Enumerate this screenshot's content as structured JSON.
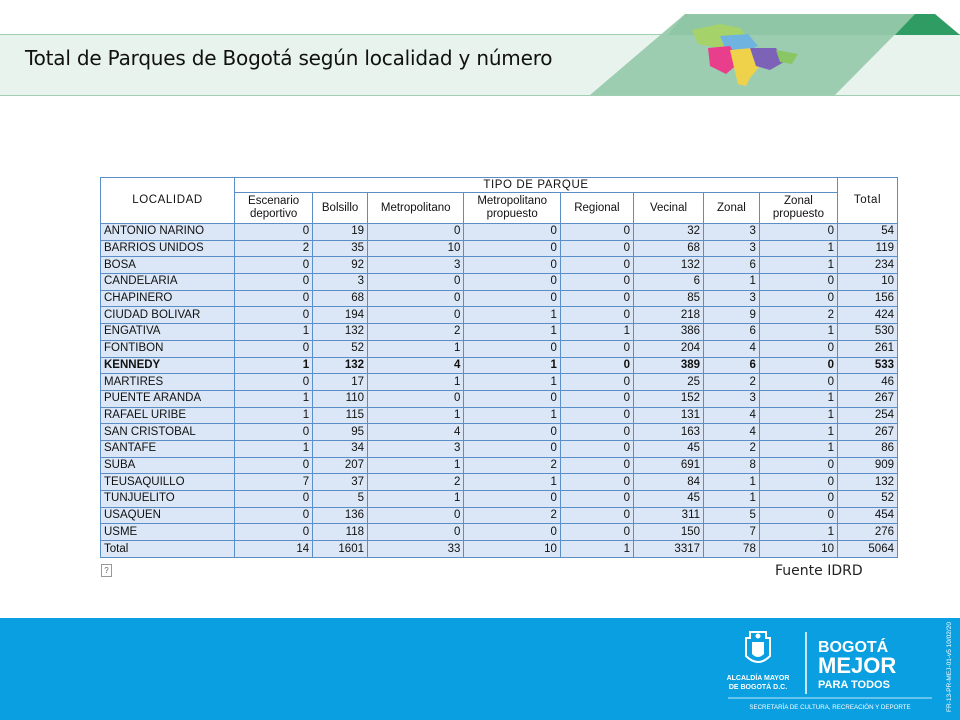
{
  "title": "Total de Parques de Bogotá según localidad y número",
  "source": "Fuente IDRD",
  "placeholder_glyph": "?",
  "table": {
    "localidad_header": "LOCALIDAD",
    "group_header": "TIPO DE PARQUE",
    "total_header": "Total",
    "columns": [
      "Escenario deportivo",
      "Bolsillo",
      "Metropolitano",
      "Metropolitano propuesto",
      "Regional",
      "Vecinal",
      "Zonal",
      "Zonal propuesto"
    ],
    "rows": [
      {
        "name": "ANTONIO NARINO",
        "values": [
          "0",
          "19",
          "0",
          "0",
          "0",
          "32",
          "3",
          "0"
        ],
        "total": "54"
      },
      {
        "name": "BARRIOS UNIDOS",
        "values": [
          "2",
          "35",
          "10",
          "0",
          "0",
          "68",
          "3",
          "1"
        ],
        "total": "119"
      },
      {
        "name": "BOSA",
        "values": [
          "0",
          "92",
          "3",
          "0",
          "0",
          "132",
          "6",
          "1"
        ],
        "total": "234"
      },
      {
        "name": "CANDELARIA",
        "values": [
          "0",
          "3",
          "0",
          "0",
          "0",
          "6",
          "1",
          "0"
        ],
        "total": "10"
      },
      {
        "name": "CHAPINERO",
        "values": [
          "0",
          "68",
          "0",
          "0",
          "0",
          "85",
          "3",
          "0"
        ],
        "total": "156"
      },
      {
        "name": "CIUDAD BOLIVAR",
        "values": [
          "0",
          "194",
          "0",
          "1",
          "0",
          "218",
          "9",
          "2"
        ],
        "total": "424"
      },
      {
        "name": "ENGATIVA",
        "values": [
          "1",
          "132",
          "2",
          "1",
          "1",
          "386",
          "6",
          "1"
        ],
        "total": "530"
      },
      {
        "name": "FONTIBON",
        "values": [
          "0",
          "52",
          "1",
          "0",
          "0",
          "204",
          "4",
          "0"
        ],
        "total": "261"
      },
      {
        "name": "KENNEDY",
        "values": [
          "1",
          "132",
          "4",
          "1",
          "0",
          "389",
          "6",
          "0"
        ],
        "total": "533",
        "bold": true
      },
      {
        "name": "MARTIRES",
        "values": [
          "0",
          "17",
          "1",
          "1",
          "0",
          "25",
          "2",
          "0"
        ],
        "total": "46"
      },
      {
        "name": "PUENTE ARANDA",
        "values": [
          "1",
          "110",
          "0",
          "0",
          "0",
          "152",
          "3",
          "1"
        ],
        "total": "267"
      },
      {
        "name": "RAFAEL URIBE",
        "values": [
          "1",
          "115",
          "1",
          "1",
          "0",
          "131",
          "4",
          "1"
        ],
        "total": "254"
      },
      {
        "name": "SAN CRISTOBAL",
        "values": [
          "0",
          "95",
          "4",
          "0",
          "0",
          "163",
          "4",
          "1"
        ],
        "total": "267"
      },
      {
        "name": "SANTAFE",
        "values": [
          "1",
          "34",
          "3",
          "0",
          "0",
          "45",
          "2",
          "1"
        ],
        "total": "86"
      },
      {
        "name": "SUBA",
        "values": [
          "0",
          "207",
          "1",
          "2",
          "0",
          "691",
          "8",
          "0"
        ],
        "total": "909"
      },
      {
        "name": "TEUSAQUILLO",
        "values": [
          "7",
          "37",
          "2",
          "1",
          "0",
          "84",
          "1",
          "0"
        ],
        "total": "132"
      },
      {
        "name": "TUNJUELITO",
        "values": [
          "0",
          "5",
          "1",
          "0",
          "0",
          "45",
          "1",
          "0"
        ],
        "total": "52"
      },
      {
        "name": "USAQUEN",
        "values": [
          "0",
          "136",
          "0",
          "2",
          "0",
          "311",
          "5",
          "0"
        ],
        "total": "454"
      },
      {
        "name": "USME",
        "values": [
          "0",
          "118",
          "0",
          "0",
          "0",
          "150",
          "7",
          "1"
        ],
        "total": "276"
      }
    ],
    "total_row": {
      "name": "Total",
      "values": [
        "14",
        "1601",
        "33",
        "10",
        "1",
        "3317",
        "78",
        "10"
      ],
      "total": "5064"
    }
  },
  "footer": {
    "alcaldia": "ALCALDÍA MAYOR DE BOGOTÁ D.C.",
    "brand_line1": "BOGOTÁ",
    "brand_line2": "MEJOR",
    "brand_line3": "PARA TODOS",
    "secretaria": "SECRETARÍA DE CULTURA, RECREACIÓN Y DEPORTE",
    "code": "FR-13-PR-MEJ-01-v5 10/02/2016"
  },
  "colors": {
    "accent_green": "#2e9c63",
    "footer_blue": "#0a9fe0",
    "cell_fill": "#dbe7f6",
    "border": "#5b8ec7"
  }
}
